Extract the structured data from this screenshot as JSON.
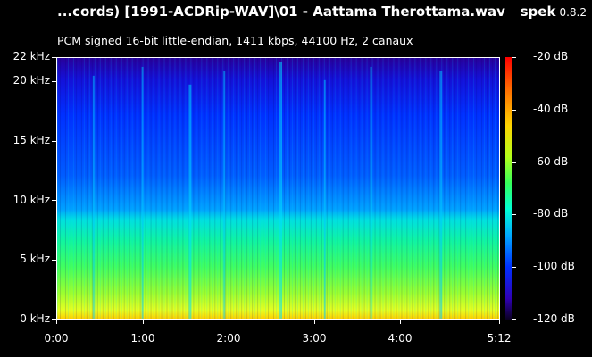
{
  "header": {
    "title": "...cords) [1991-ACDRip-WAV]\\01 - Aattama Therottama.wav",
    "app_name": "spek",
    "app_version": "0.8.2"
  },
  "file_info": "PCM signed 16-bit little-endian, 1411 kbps, 44100 Hz, 2 canaux",
  "frequency_axis": [
    "22 kHz",
    "20 kHz",
    "15 kHz",
    "10 kHz",
    "5 kHz",
    "0 kHz"
  ],
  "time_axis": [
    "0:00",
    "1:00",
    "2:00",
    "3:00",
    "4:00",
    "5:12"
  ],
  "db_scale": [
    "-20 dB",
    "-40 dB",
    "-60 dB",
    "-80 dB",
    "-100 dB",
    "-120 dB"
  ],
  "colors": {
    "background": "#000000",
    "text": "#ffffff",
    "loud": "#ff0000",
    "quiet": "#0a0020"
  }
}
